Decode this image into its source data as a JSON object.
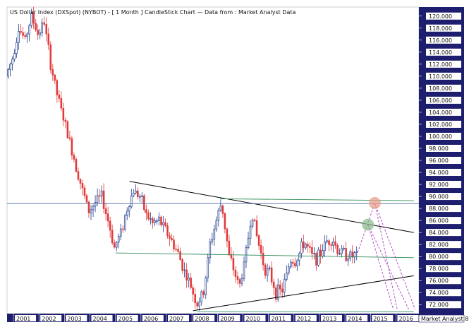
{
  "title": "US Dollar Index (DXSpot) (NYBOT) -  [ 1 Month ] CandleStick Chart — Data from : Market Analyst Data",
  "watermark": "Market Analyst 8",
  "colors": {
    "up": "#1f3d8c",
    "down": "#e23a3a",
    "axis_panel": "#1e1e6e",
    "trend_black": "#000000",
    "trend_green": "#2e8b57",
    "horizontal_blue": "#4a6fa5",
    "projection_pink": "#b34fc6",
    "circle_red": "#e7a08c",
    "circle_green": "#8fbc8f"
  },
  "chart_data": {
    "type": "candlestick",
    "ylim": [
      70.5,
      121.5
    ],
    "xlim": [
      2000.75,
      2016.9
    ],
    "y_ticks": [
      72,
      74,
      76,
      78,
      80,
      82,
      84,
      86,
      88,
      90,
      92,
      94,
      96,
      98,
      100,
      102,
      104,
      106,
      108,
      110,
      112,
      114,
      116,
      118,
      120
    ],
    "y_tick_labels": [
      "72.000",
      "74.000",
      "76.000",
      "78.000",
      "80.000",
      "82.000",
      "84.000",
      "86.000",
      "88.000",
      "90.000",
      "92.000",
      "94.000",
      "96.000",
      "98.000",
      "100.000",
      "102.000",
      "104.000",
      "106.000",
      "108.000",
      "110.000",
      "112.000",
      "114.000",
      "116.000",
      "118.000",
      "120.000"
    ],
    "x_ticks": [
      2001,
      2002,
      2003,
      2004,
      2005,
      2006,
      2007,
      2008,
      2009,
      2010,
      2011,
      2012,
      2013,
      2014,
      2015,
      2016
    ],
    "x_tick_labels": [
      "2001",
      "2002",
      "2003",
      "2004",
      "2005",
      "2006",
      "2007",
      "2008",
      "2009",
      "2010",
      "2011",
      "2012",
      "2013",
      "2014",
      "2015",
      "2016"
    ],
    "anchors": [
      [
        2000.75,
        110
      ],
      [
        2001.0,
        113
      ],
      [
        2001.25,
        118
      ],
      [
        2001.5,
        116
      ],
      [
        2001.75,
        120
      ],
      [
        2002.0,
        117
      ],
      [
        2002.25,
        119
      ],
      [
        2002.5,
        112
      ],
      [
        2002.75,
        107
      ],
      [
        2003.0,
        103
      ],
      [
        2003.25,
        99
      ],
      [
        2003.5,
        95
      ],
      [
        2003.75,
        91
      ],
      [
        2004.0,
        87.5
      ],
      [
        2004.25,
        89
      ],
      [
        2004.5,
        90
      ],
      [
        2004.75,
        86
      ],
      [
        2005.0,
        81.5
      ],
      [
        2005.25,
        84
      ],
      [
        2005.5,
        88
      ],
      [
        2005.75,
        91
      ],
      [
        2006.0,
        90
      ],
      [
        2006.25,
        87
      ],
      [
        2006.5,
        85.5
      ],
      [
        2006.75,
        86
      ],
      [
        2007.0,
        84.5
      ],
      [
        2007.25,
        82.5
      ],
      [
        2007.5,
        80.5
      ],
      [
        2007.75,
        77.5
      ],
      [
        2008.0,
        75
      ],
      [
        2008.25,
        72
      ],
      [
        2008.5,
        74
      ],
      [
        2008.75,
        82
      ],
      [
        2009.0,
        86
      ],
      [
        2009.2,
        89
      ],
      [
        2009.5,
        80
      ],
      [
        2009.9,
        75
      ],
      [
        2010.1,
        79
      ],
      [
        2010.4,
        87.5
      ],
      [
        2010.6,
        83
      ],
      [
        2010.9,
        78
      ],
      [
        2011.1,
        77
      ],
      [
        2011.35,
        74
      ],
      [
        2011.6,
        74.5
      ],
      [
        2011.9,
        79.5
      ],
      [
        2012.1,
        79
      ],
      [
        2012.45,
        82.5
      ],
      [
        2012.75,
        80
      ],
      [
        2013.0,
        79.8
      ],
      [
        2013.3,
        82.5
      ],
      [
        2013.55,
        83
      ],
      [
        2013.75,
        81
      ],
      [
        2014.0,
        80.6
      ],
      [
        2014.3,
        80
      ],
      [
        2014.42,
        80.2
      ]
    ],
    "lines": [
      {
        "kind": "black",
        "from": [
          2005.55,
          92.5
        ],
        "to": [
          2016.7,
          84
        ]
      },
      {
        "kind": "black",
        "from": [
          2008.05,
          71
        ],
        "to": [
          2016.7,
          76.8
        ]
      },
      {
        "kind": "green",
        "from": [
          2009.1,
          89.6
        ],
        "to": [
          2016.7,
          89.3
        ]
      },
      {
        "kind": "green",
        "from": [
          2005.0,
          80.6
        ],
        "to": [
          2016.7,
          79.8
        ]
      },
      {
        "kind": "green",
        "from": [
          2008.2,
          70.8
        ],
        "to": [
          2016.7,
          70.8
        ]
      },
      {
        "kind": "blue",
        "from": [
          2000.75,
          88.8
        ],
        "to": [
          2016.9,
          88.8
        ]
      },
      {
        "kind": "pink",
        "from": [
          2014.5,
          80.7
        ],
        "to": [
          2015.17,
          88.9
        ]
      },
      {
        "kind": "pink",
        "from": [
          2015.17,
          88.9
        ],
        "to": [
          2016.05,
          71.2
        ]
      },
      {
        "kind": "pink",
        "from": [
          2015.17,
          88.9
        ],
        "to": [
          2016.75,
          71.2
        ]
      },
      {
        "kind": "pink",
        "from": [
          2014.9,
          85.3
        ],
        "to": [
          2015.9,
          71.2
        ]
      },
      {
        "kind": "pink",
        "from": [
          2014.9,
          85.3
        ],
        "to": [
          2016.5,
          71.2
        ]
      }
    ],
    "circles": [
      {
        "kind": "red",
        "at": [
          2015.17,
          88.9
        ]
      },
      {
        "kind": "green",
        "at": [
          2014.9,
          85.3
        ]
      }
    ]
  }
}
